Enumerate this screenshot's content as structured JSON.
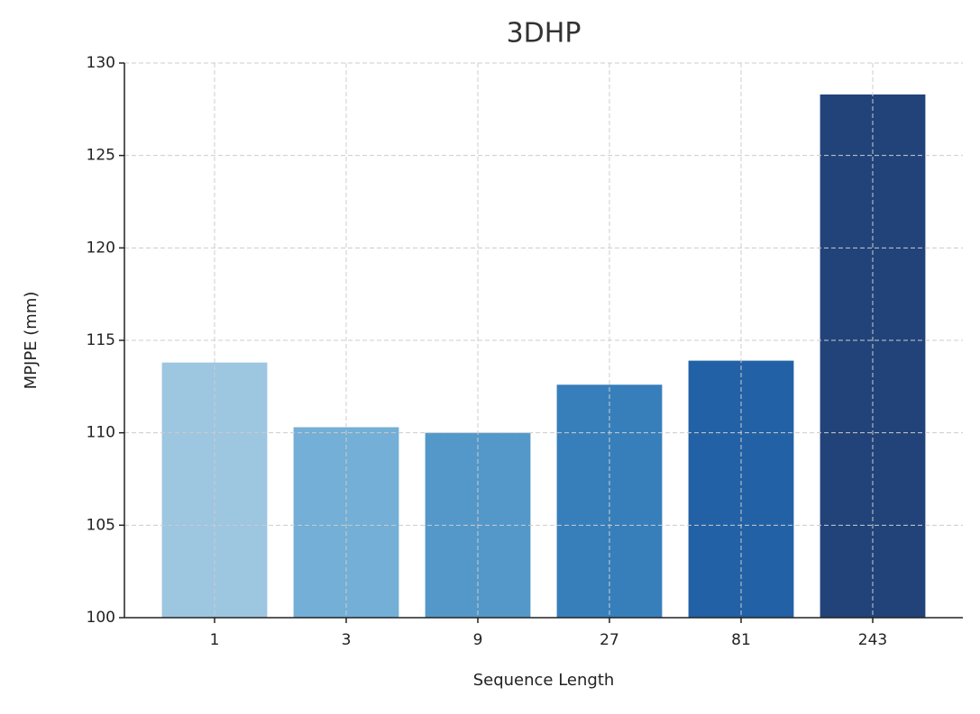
{
  "chart_data": {
    "type": "bar",
    "title": "3DHP",
    "x_label": "Sequence Length",
    "y_label": "MPJPE (mm)",
    "categories": [
      "1",
      "3",
      "9",
      "27",
      "81",
      "243"
    ],
    "values": [
      113.8,
      110.3,
      110.0,
      112.6,
      113.9,
      128.3
    ],
    "colors": [
      "#9dc6e0",
      "#73afd6",
      "#5398c9",
      "#377fbb",
      "#2261a5",
      "#21437a"
    ],
    "ylim": [
      100,
      130
    ],
    "yticks": [
      100,
      105,
      110,
      115,
      120,
      125,
      130
    ],
    "grid": true
  }
}
